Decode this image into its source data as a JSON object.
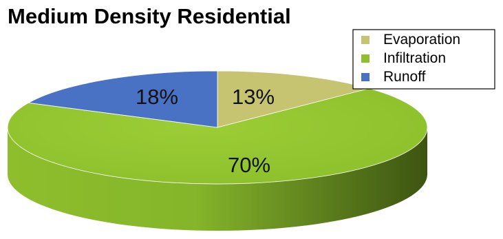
{
  "chart_data": {
    "type": "pie",
    "title": "Medium Density Residential",
    "categories": [
      "Evaporation",
      "Infiltration",
      "Runoff"
    ],
    "values": [
      13,
      70,
      18
    ],
    "labels": [
      "13%",
      "70%",
      "18%"
    ],
    "colors": [
      "#c7c471",
      "#8fbf2f",
      "#4a72c4"
    ],
    "legend_position": "top-right",
    "style": "3d"
  }
}
